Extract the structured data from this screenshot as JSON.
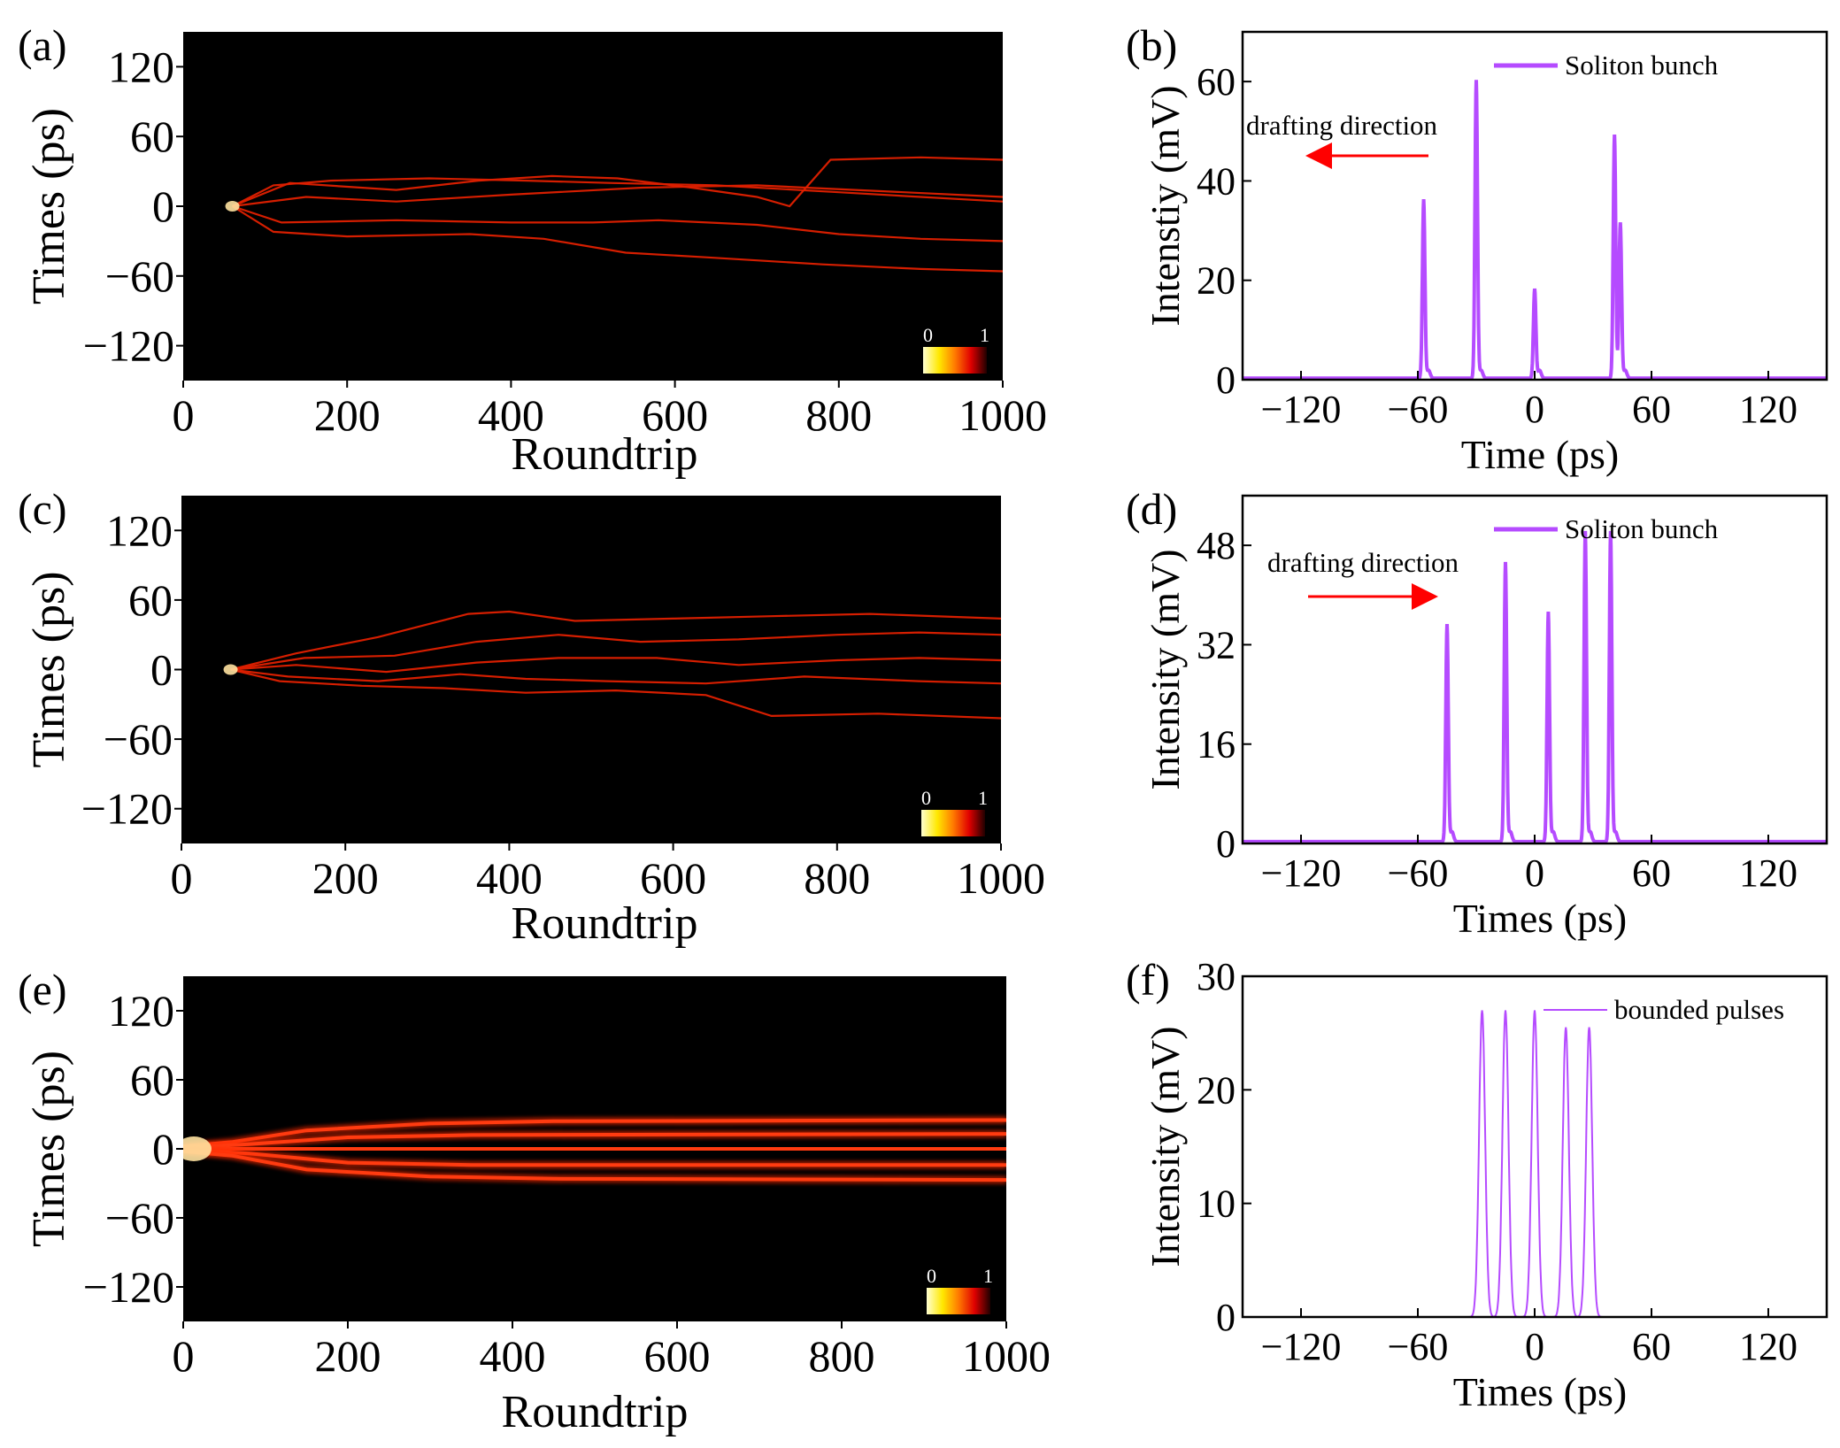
{
  "chart_data": [
    {
      "panel": "(a)",
      "type": "heatmap",
      "xlabel": "Roundtrip",
      "ylabel": "Times (ps)",
      "xlim": [
        0,
        1000
      ],
      "ylim": [
        -150,
        150
      ],
      "xticks": [
        "0",
        "200",
        "400",
        "600",
        "800",
        "1000"
      ],
      "yticks": [
        "120",
        "60",
        "0",
        "-60",
        "-120"
      ],
      "colorbar": {
        "min_label": "0",
        "max_label": "1"
      },
      "traces": [
        {
          "points": [
            [
              60,
              0
            ],
            [
              110,
              18
            ],
            [
              180,
              22
            ],
            [
              300,
              24
            ],
            [
              420,
              22
            ],
            [
              520,
              20
            ],
            [
              650,
              18
            ],
            [
              800,
              12
            ],
            [
              900,
              8
            ],
            [
              1000,
              4
            ]
          ]
        },
        {
          "points": [
            [
              60,
              0
            ],
            [
              130,
              20
            ],
            [
              260,
              14
            ],
            [
              360,
              22
            ],
            [
              450,
              26
            ],
            [
              530,
              24
            ],
            [
              620,
              16
            ],
            [
              700,
              8
            ],
            [
              740,
              0
            ],
            [
              790,
              40
            ],
            [
              900,
              42
            ],
            [
              1000,
              40
            ]
          ]
        },
        {
          "points": [
            [
              60,
              0
            ],
            [
              150,
              8
            ],
            [
              260,
              4
            ],
            [
              400,
              10
            ],
            [
              560,
              16
            ],
            [
              700,
              18
            ],
            [
              820,
              14
            ],
            [
              1000,
              8
            ]
          ]
        },
        {
          "points": [
            [
              60,
              0
            ],
            [
              120,
              -14
            ],
            [
              260,
              -12
            ],
            [
              400,
              -14
            ],
            [
              500,
              -14
            ],
            [
              580,
              -12
            ],
            [
              700,
              -16
            ],
            [
              800,
              -24
            ],
            [
              900,
              -28
            ],
            [
              1000,
              -30
            ]
          ]
        },
        {
          "points": [
            [
              60,
              0
            ],
            [
              110,
              -22
            ],
            [
              200,
              -26
            ],
            [
              350,
              -24
            ],
            [
              440,
              -28
            ],
            [
              540,
              -40
            ],
            [
              640,
              -44
            ],
            [
              780,
              -50
            ],
            [
              900,
              -54
            ],
            [
              1000,
              -56
            ]
          ]
        }
      ]
    },
    {
      "panel": "(b)",
      "type": "line",
      "xlabel": "Time (ps)",
      "ylabel": "Intenstiy (mV)",
      "xlim": [
        -150,
        150
      ],
      "ylim": [
        0,
        70
      ],
      "xticks": [
        -120,
        -60,
        0,
        60,
        120
      ],
      "yticks": [
        0,
        20,
        40,
        60
      ],
      "series": [
        {
          "name": "Soliton bunch",
          "color": "#B54BFF",
          "peaks": [
            [
              -57,
              36
            ],
            [
              -30,
              60
            ],
            [
              0,
              18
            ],
            [
              41,
              49
            ],
            [
              44,
              30
            ]
          ],
          "baseline": 0.3
        }
      ],
      "annotation": {
        "text": "drafting direction",
        "direction": "left",
        "color": "#FF0000"
      }
    },
    {
      "panel": "(c)",
      "type": "heatmap",
      "xlabel": "Roundtrip",
      "ylabel": "Times (ps)",
      "xlim": [
        0,
        1000
      ],
      "ylim": [
        -150,
        150
      ],
      "xticks": [
        "0",
        "200",
        "400",
        "600",
        "800",
        "1000"
      ],
      "yticks": [
        "120",
        "60",
        "0",
        "-60",
        "-120"
      ],
      "colorbar": {
        "min_label": "0",
        "max_label": "1"
      },
      "traces": [
        {
          "points": [
            [
              60,
              0
            ],
            [
              140,
              14
            ],
            [
              240,
              28
            ],
            [
              350,
              48
            ],
            [
              400,
              50
            ],
            [
              480,
              42
            ],
            [
              600,
              44
            ],
            [
              720,
              46
            ],
            [
              840,
              48
            ],
            [
              1000,
              44
            ]
          ]
        },
        {
          "points": [
            [
              60,
              0
            ],
            [
              150,
              10
            ],
            [
              260,
              12
            ],
            [
              360,
              24
            ],
            [
              460,
              30
            ],
            [
              560,
              24
            ],
            [
              680,
              26
            ],
            [
              800,
              30
            ],
            [
              900,
              32
            ],
            [
              1000,
              30
            ]
          ]
        },
        {
          "points": [
            [
              60,
              0
            ],
            [
              140,
              4
            ],
            [
              250,
              -2
            ],
            [
              360,
              6
            ],
            [
              460,
              10
            ],
            [
              580,
              10
            ],
            [
              680,
              4
            ],
            [
              800,
              8
            ],
            [
              900,
              10
            ],
            [
              1000,
              8
            ]
          ]
        },
        {
          "points": [
            [
              60,
              0
            ],
            [
              130,
              -6
            ],
            [
              240,
              -10
            ],
            [
              340,
              -4
            ],
            [
              420,
              -8
            ],
            [
              520,
              -10
            ],
            [
              640,
              -12
            ],
            [
              760,
              -6
            ],
            [
              900,
              -10
            ],
            [
              1000,
              -12
            ]
          ]
        },
        {
          "points": [
            [
              60,
              0
            ],
            [
              120,
              -10
            ],
            [
              220,
              -14
            ],
            [
              320,
              -16
            ],
            [
              420,
              -20
            ],
            [
              530,
              -18
            ],
            [
              640,
              -22
            ],
            [
              720,
              -40
            ],
            [
              850,
              -38
            ],
            [
              1000,
              -42
            ]
          ]
        }
      ]
    },
    {
      "panel": "(d)",
      "type": "line",
      "xlabel": "Times (ps)",
      "ylabel": "Intensity (mV)",
      "xlim": [
        -150,
        150
      ],
      "ylim": [
        0,
        56
      ],
      "xticks": [
        -120,
        -60,
        0,
        60,
        120
      ],
      "yticks": [
        0,
        16,
        32,
        48
      ],
      "series": [
        {
          "name": "Soliton bunch",
          "color": "#B54BFF",
          "peaks": [
            [
              -45,
              35
            ],
            [
              -15,
              45
            ],
            [
              7,
              37
            ],
            [
              26,
              50
            ],
            [
              39,
              50
            ]
          ],
          "baseline": 0.3
        }
      ],
      "annotation": {
        "text": "drafting direction",
        "direction": "right",
        "color": "#FF0000"
      }
    },
    {
      "panel": "(e)",
      "type": "heatmap",
      "xlabel": "Roundtrip",
      "ylabel": "Times (ps)",
      "xlim": [
        0,
        1000
      ],
      "ylim": [
        -150,
        150
      ],
      "xticks": [
        "0",
        "200",
        "400",
        "600",
        "800",
        "1000"
      ],
      "yticks": [
        "120",
        "60",
        "0",
        "-60",
        "-120"
      ],
      "colorbar": {
        "min_label": "0",
        "max_label": "1"
      },
      "traces": [
        {
          "points": [
            [
              0,
              2
            ],
            [
              60,
              6
            ],
            [
              150,
              16
            ],
            [
              300,
              22
            ],
            [
              450,
              24
            ],
            [
              1000,
              25
            ]
          ]
        },
        {
          "points": [
            [
              0,
              1
            ],
            [
              80,
              4
            ],
            [
              200,
              10
            ],
            [
              350,
              12
            ],
            [
              1000,
              13
            ]
          ]
        },
        {
          "points": [
            [
              0,
              0
            ],
            [
              1000,
              0
            ]
          ]
        },
        {
          "points": [
            [
              0,
              -1
            ],
            [
              80,
              -4
            ],
            [
              200,
              -12
            ],
            [
              350,
              -14
            ],
            [
              1000,
              -14
            ]
          ]
        },
        {
          "points": [
            [
              0,
              -2
            ],
            [
              60,
              -6
            ],
            [
              150,
              -18
            ],
            [
              300,
              -24
            ],
            [
              450,
              -26
            ],
            [
              1000,
              -27
            ]
          ]
        }
      ]
    },
    {
      "panel": "(f)",
      "type": "line",
      "xlabel": "Times (ps)",
      "ylabel": "Intensity (mV)",
      "xlim": [
        -150,
        150
      ],
      "ylim": [
        0,
        30
      ],
      "xticks": [
        -120,
        -60,
        0,
        60,
        120
      ],
      "yticks": [
        0,
        10,
        20,
        30
      ],
      "series": [
        {
          "name": "bounded pulses",
          "color": "#B54BFF",
          "peaks": [
            [
              -27,
              27
            ],
            [
              -15,
              27
            ],
            [
              0,
              27
            ],
            [
              16,
              25.5
            ],
            [
              28,
              25.5
            ]
          ],
          "baseline": 0
        }
      ]
    }
  ]
}
